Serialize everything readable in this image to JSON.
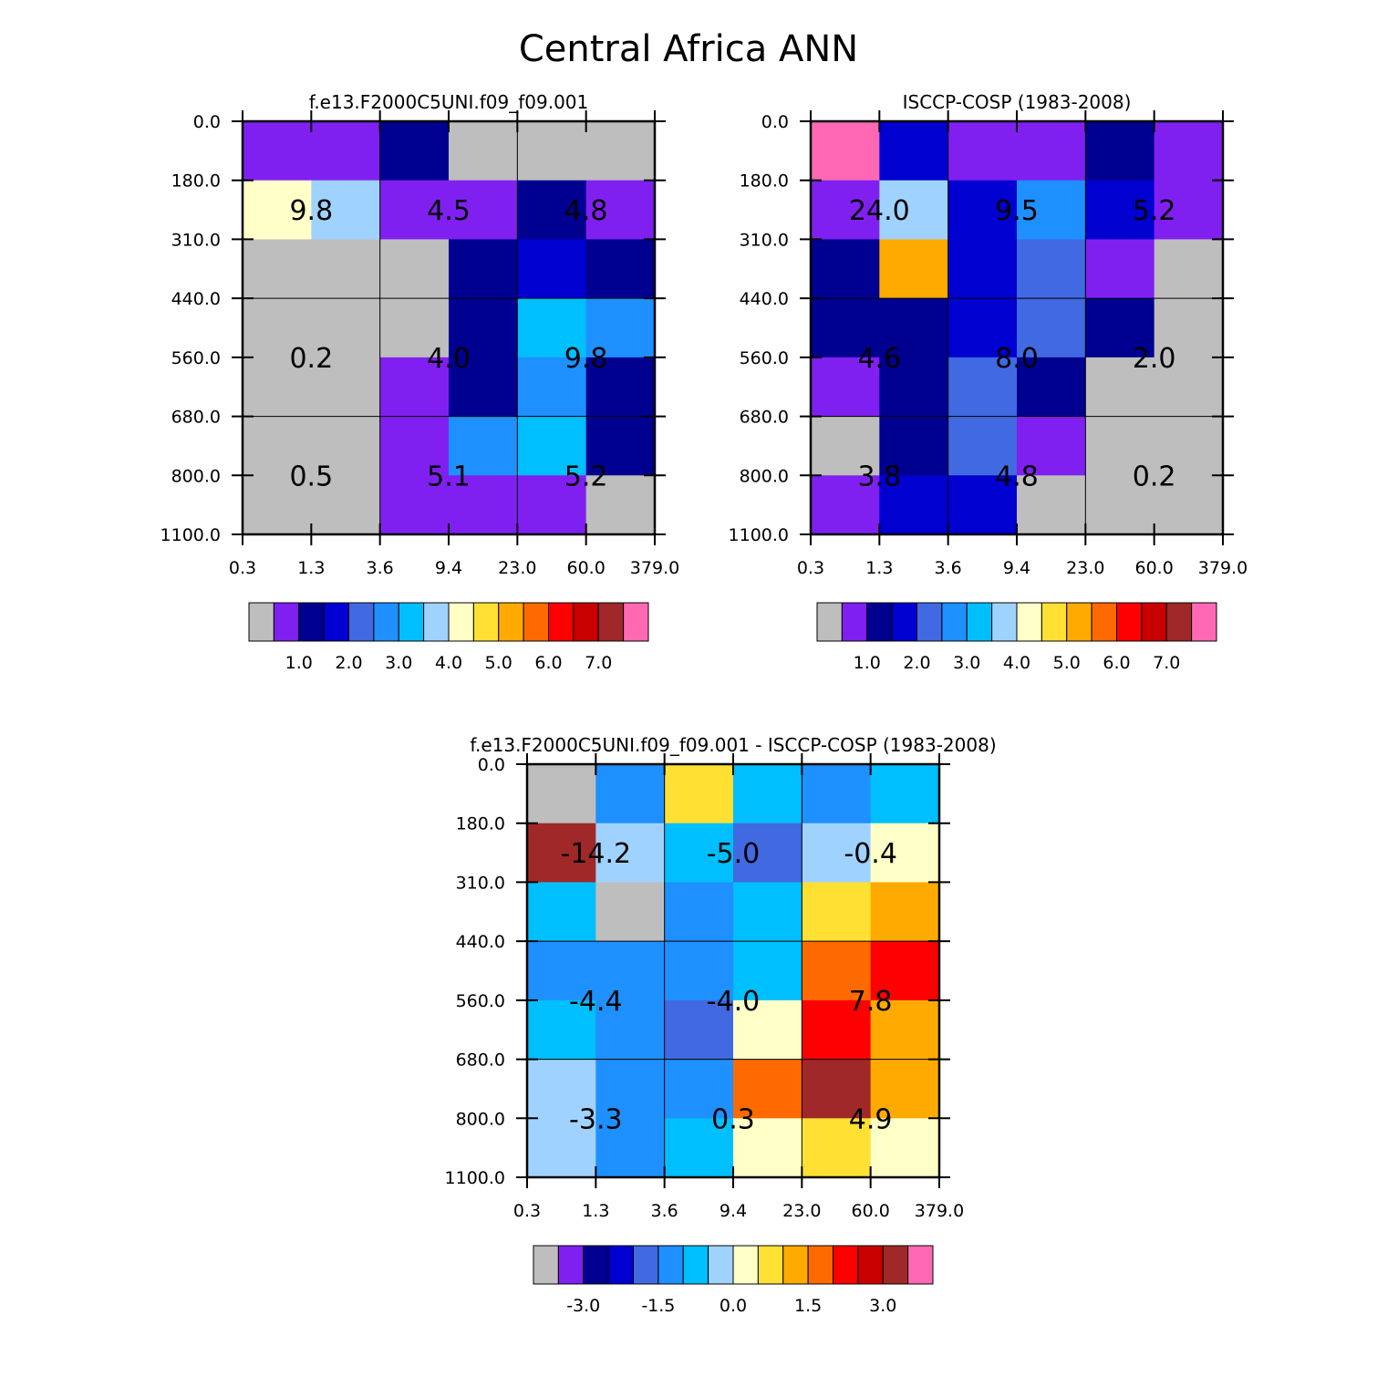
{
  "title": "Central Africa ANN",
  "x_ticks": [
    "0.3",
    "1.3",
    "3.6",
    "9.4",
    "23.0",
    "60.0",
    "379.0"
  ],
  "y_ticks": [
    "0.0",
    "180.0",
    "310.0",
    "440.0",
    "560.0",
    "680.0",
    "800.0",
    "1100.0"
  ],
  "palette": {
    "missing": "#bebebe",
    "abs_colors": [
      "#bebebe",
      "#8020f0",
      "#000090",
      "#0000d0",
      "#4169e1",
      "#1e90ff",
      "#00bfff",
      "#a0d2ff",
      "#ffffc8",
      "#ffe033",
      "#ffaa00",
      "#ff6a00",
      "#ff0000",
      "#c80000",
      "#a02828",
      "#ff69b4"
    ],
    "abs_labels": [
      "1.0",
      "2.0",
      "3.0",
      "4.0",
      "5.0",
      "6.0",
      "7.0"
    ],
    "diff_colors": [
      "#bebebe",
      "#8020f0",
      "#000090",
      "#0000d0",
      "#4169e1",
      "#1e90ff",
      "#00bfff",
      "#a0d2ff",
      "#ffffc8",
      "#ffe033",
      "#ffaa00",
      "#ff6a00",
      "#ff0000",
      "#c80000",
      "#a02828",
      "#ff69b4"
    ],
    "diff_labels": [
      "-3.0",
      "-1.5",
      "0.0",
      "1.5",
      "3.0"
    ]
  },
  "chart_data": [
    {
      "type": "heatmap",
      "title": "f.e13.F2000C5UNI.f09_f09.001",
      "x_ticks": [
        "0.3",
        "1.3",
        "3.6",
        "9.4",
        "23.0",
        "60.0",
        "379.0"
      ],
      "y_ticks": [
        "0.0",
        "180.0",
        "310.0",
        "440.0",
        "560.0",
        "680.0",
        "800.0",
        "1100.0"
      ],
      "cells": [
        [
          "#8020f0",
          "#8020f0",
          "#000090",
          "#bebebe",
          "#bebebe",
          "#bebebe"
        ],
        [
          "#ffffc8",
          "#a0d2ff",
          "#8020f0",
          "#8020f0",
          "#000090",
          "#8020f0"
        ],
        [
          "#bebebe",
          "#bebebe",
          "#bebebe",
          "#000090",
          "#0000d0",
          "#000090"
        ],
        [
          "#bebebe",
          "#bebebe",
          "#bebebe",
          "#000090",
          "#00bfff",
          "#1e90ff"
        ],
        [
          "#bebebe",
          "#bebebe",
          "#8020f0",
          "#000090",
          "#1e90ff",
          "#000090"
        ],
        [
          "#bebebe",
          "#bebebe",
          "#8020f0",
          "#1e90ff",
          "#00bfff",
          "#000090"
        ],
        [
          "#bebebe",
          "#bebebe",
          "#8020f0",
          "#8020f0",
          "#8020f0",
          "#bebebe"
        ]
      ],
      "totals": [
        {
          "label": "9.8",
          "row_group": "high",
          "col_group": "thin"
        },
        {
          "label": "4.5",
          "row_group": "high",
          "col_group": "medium"
        },
        {
          "label": "4.8",
          "row_group": "high",
          "col_group": "thick"
        },
        {
          "label": "0.2",
          "row_group": "mid",
          "col_group": "thin"
        },
        {
          "label": "4.0",
          "row_group": "mid",
          "col_group": "medium"
        },
        {
          "label": "9.8",
          "row_group": "mid",
          "col_group": "thick"
        },
        {
          "label": "0.5",
          "row_group": "low",
          "col_group": "thin"
        },
        {
          "label": "5.1",
          "row_group": "low",
          "col_group": "medium"
        },
        {
          "label": "5.2",
          "row_group": "low",
          "col_group": "thick"
        }
      ],
      "colorbar_labels": [
        "1.0",
        "2.0",
        "3.0",
        "4.0",
        "5.0",
        "6.0",
        "7.0"
      ]
    },
    {
      "type": "heatmap",
      "title": "ISCCP-COSP (1983-2008)",
      "x_ticks": [
        "0.3",
        "1.3",
        "3.6",
        "9.4",
        "23.0",
        "60.0",
        "379.0"
      ],
      "y_ticks": [
        "0.0",
        "180.0",
        "310.0",
        "440.0",
        "560.0",
        "680.0",
        "800.0",
        "1100.0"
      ],
      "cells": [
        [
          "#ff69b4",
          "#0000d0",
          "#8020f0",
          "#8020f0",
          "#000090",
          "#8020f0"
        ],
        [
          "#8020f0",
          "#a0d2ff",
          "#0000d0",
          "#1e90ff",
          "#0000d0",
          "#8020f0"
        ],
        [
          "#000090",
          "#ffaa00",
          "#0000d0",
          "#4169e1",
          "#8020f0",
          "#bebebe"
        ],
        [
          "#000090",
          "#000090",
          "#0000d0",
          "#4169e1",
          "#000090",
          "#bebebe"
        ],
        [
          "#8020f0",
          "#000090",
          "#4169e1",
          "#000090",
          "#bebebe",
          "#bebebe"
        ],
        [
          "#bebebe",
          "#000090",
          "#4169e1",
          "#8020f0",
          "#bebebe",
          "#bebebe"
        ],
        [
          "#8020f0",
          "#0000d0",
          "#0000d0",
          "#bebebe",
          "#bebebe",
          "#bebebe"
        ]
      ],
      "totals": [
        {
          "label": "24.0",
          "row_group": "high",
          "col_group": "thin"
        },
        {
          "label": "9.5",
          "row_group": "high",
          "col_group": "medium"
        },
        {
          "label": "5.2",
          "row_group": "high",
          "col_group": "thick"
        },
        {
          "label": "4.6",
          "row_group": "mid",
          "col_group": "thin"
        },
        {
          "label": "8.0",
          "row_group": "mid",
          "col_group": "medium"
        },
        {
          "label": "2.0",
          "row_group": "mid",
          "col_group": "thick"
        },
        {
          "label": "3.8",
          "row_group": "low",
          "col_group": "thin"
        },
        {
          "label": "4.8",
          "row_group": "low",
          "col_group": "medium"
        },
        {
          "label": "0.2",
          "row_group": "low",
          "col_group": "thick"
        }
      ],
      "colorbar_labels": [
        "1.0",
        "2.0",
        "3.0",
        "4.0",
        "5.0",
        "6.0",
        "7.0"
      ]
    },
    {
      "type": "heatmap",
      "title": "f.e13.F2000C5UNI.f09_f09.001 - ISCCP-COSP (1983-2008)",
      "x_ticks": [
        "0.3",
        "1.3",
        "3.6",
        "9.4",
        "23.0",
        "60.0",
        "379.0"
      ],
      "y_ticks": [
        "0.0",
        "180.0",
        "310.0",
        "440.0",
        "560.0",
        "680.0",
        "800.0",
        "1100.0"
      ],
      "cells": [
        [
          "#bebebe",
          "#1e90ff",
          "#ffe033",
          "#00bfff",
          "#1e90ff",
          "#00bfff"
        ],
        [
          "#a02828",
          "#a0d2ff",
          "#00bfff",
          "#4169e1",
          "#a0d2ff",
          "#ffffc8"
        ],
        [
          "#00bfff",
          "#bebebe",
          "#1e90ff",
          "#00bfff",
          "#ffe033",
          "#ffaa00"
        ],
        [
          "#1e90ff",
          "#1e90ff",
          "#1e90ff",
          "#00bfff",
          "#ff6a00",
          "#ff0000"
        ],
        [
          "#00bfff",
          "#1e90ff",
          "#4169e1",
          "#ffffc8",
          "#ff0000",
          "#ffaa00"
        ],
        [
          "#a0d2ff",
          "#1e90ff",
          "#1e90ff",
          "#ff6a00",
          "#a02828",
          "#ffaa00"
        ],
        [
          "#a0d2ff",
          "#1e90ff",
          "#00bfff",
          "#ffffc8",
          "#ffe033",
          "#ffffc8"
        ]
      ],
      "totals": [
        {
          "label": "-14.2",
          "row_group": "high",
          "col_group": "thin"
        },
        {
          "label": "-5.0",
          "row_group": "high",
          "col_group": "medium"
        },
        {
          "label": "-0.4",
          "row_group": "high",
          "col_group": "thick"
        },
        {
          "label": "-4.4",
          "row_group": "mid",
          "col_group": "thin"
        },
        {
          "label": "-4.0",
          "row_group": "mid",
          "col_group": "medium"
        },
        {
          "label": "7.8",
          "row_group": "mid",
          "col_group": "thick"
        },
        {
          "label": "-3.3",
          "row_group": "low",
          "col_group": "thin"
        },
        {
          "label": "0.3",
          "row_group": "low",
          "col_group": "medium"
        },
        {
          "label": "4.9",
          "row_group": "low",
          "col_group": "thick"
        }
      ],
      "colorbar_labels": [
        "-3.0",
        "-1.5",
        "0.0",
        "1.5",
        "3.0"
      ]
    }
  ]
}
